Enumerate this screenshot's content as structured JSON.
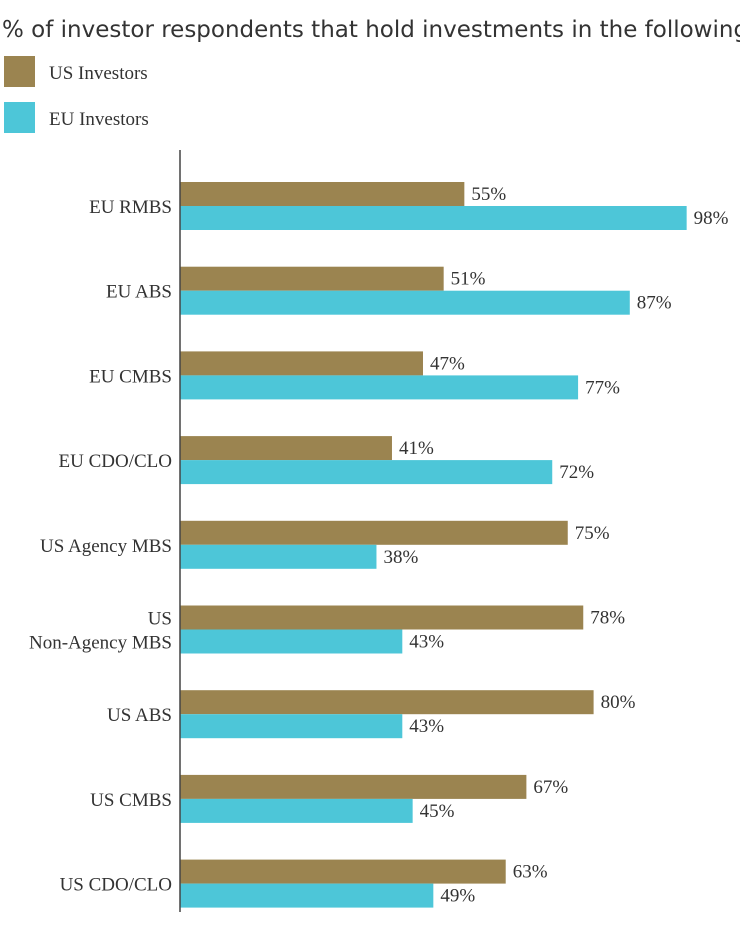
{
  "chart_data": {
    "type": "bar",
    "orientation": "horizontal",
    "title": "% of investor respondents that hold investments in the following:",
    "categories": [
      "EU RMBS",
      "EU ABS",
      "EU CMBS",
      "EU CDO/CLO",
      "US Agency MBS",
      "US Non-Agency MBS",
      "US ABS",
      "US CMBS",
      "US CDO/CLO"
    ],
    "category_lines": [
      [
        "EU RMBS"
      ],
      [
        "EU ABS"
      ],
      [
        "EU CMBS"
      ],
      [
        "EU CDO/CLO"
      ],
      [
        "US Agency MBS"
      ],
      [
        "US",
        "Non-Agency MBS"
      ],
      [
        "US ABS"
      ],
      [
        "US CMBS"
      ],
      [
        "US CDO/CLO"
      ]
    ],
    "series": [
      {
        "name": "US Investors",
        "color": "#9b8450",
        "values": [
          55,
          51,
          47,
          41,
          75,
          78,
          80,
          67,
          63
        ]
      },
      {
        "name": "EU Investors",
        "color": "#4dc6d8",
        "values": [
          98,
          87,
          77,
          72,
          38,
          43,
          43,
          45,
          49
        ]
      }
    ],
    "value_suffix": "%",
    "xlim": [
      0,
      100
    ],
    "xlabel": "",
    "ylabel": "",
    "legend": "top-left",
    "grid": false
  }
}
